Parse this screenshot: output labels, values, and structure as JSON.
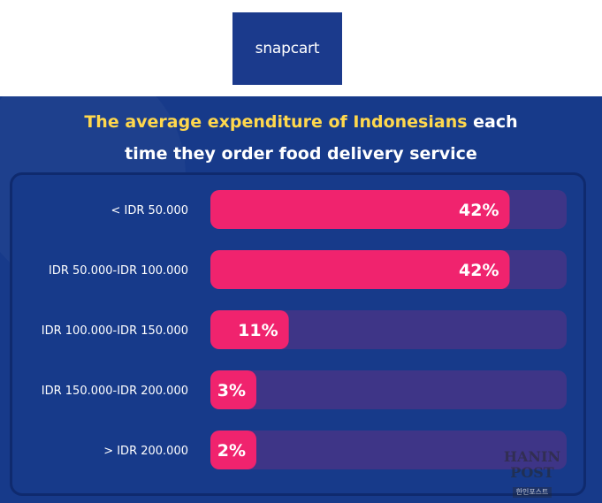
{
  "logo": {
    "text": "snapcart"
  },
  "title": {
    "highlight": "The average expenditure of Indonesians",
    "rest_line1": " each",
    "line2": "time they order food delivery service"
  },
  "colors": {
    "background": "#173a8a",
    "bar_fill": "#f0236e",
    "bar_track": "#3e3587",
    "title_highlight": "#ffd84d",
    "text": "#ffffff"
  },
  "chart_data": {
    "type": "bar",
    "orientation": "horizontal",
    "categories": [
      "< IDR 50.000",
      "IDR 50.000-IDR 100.000",
      "IDR 100.000-IDR 150.000",
      "IDR 150.000-IDR 200.000",
      "> IDR 200.000"
    ],
    "values": [
      42,
      42,
      11,
      3,
      2
    ],
    "value_labels": [
      "42%",
      "42%",
      "11%",
      "3%",
      "2%"
    ],
    "xlim": [
      0,
      50
    ],
    "title": "The average expenditure of Indonesians each time they order food delivery service"
  },
  "watermark": {
    "main": "HANIN POST",
    "sub": "한인포스트"
  }
}
